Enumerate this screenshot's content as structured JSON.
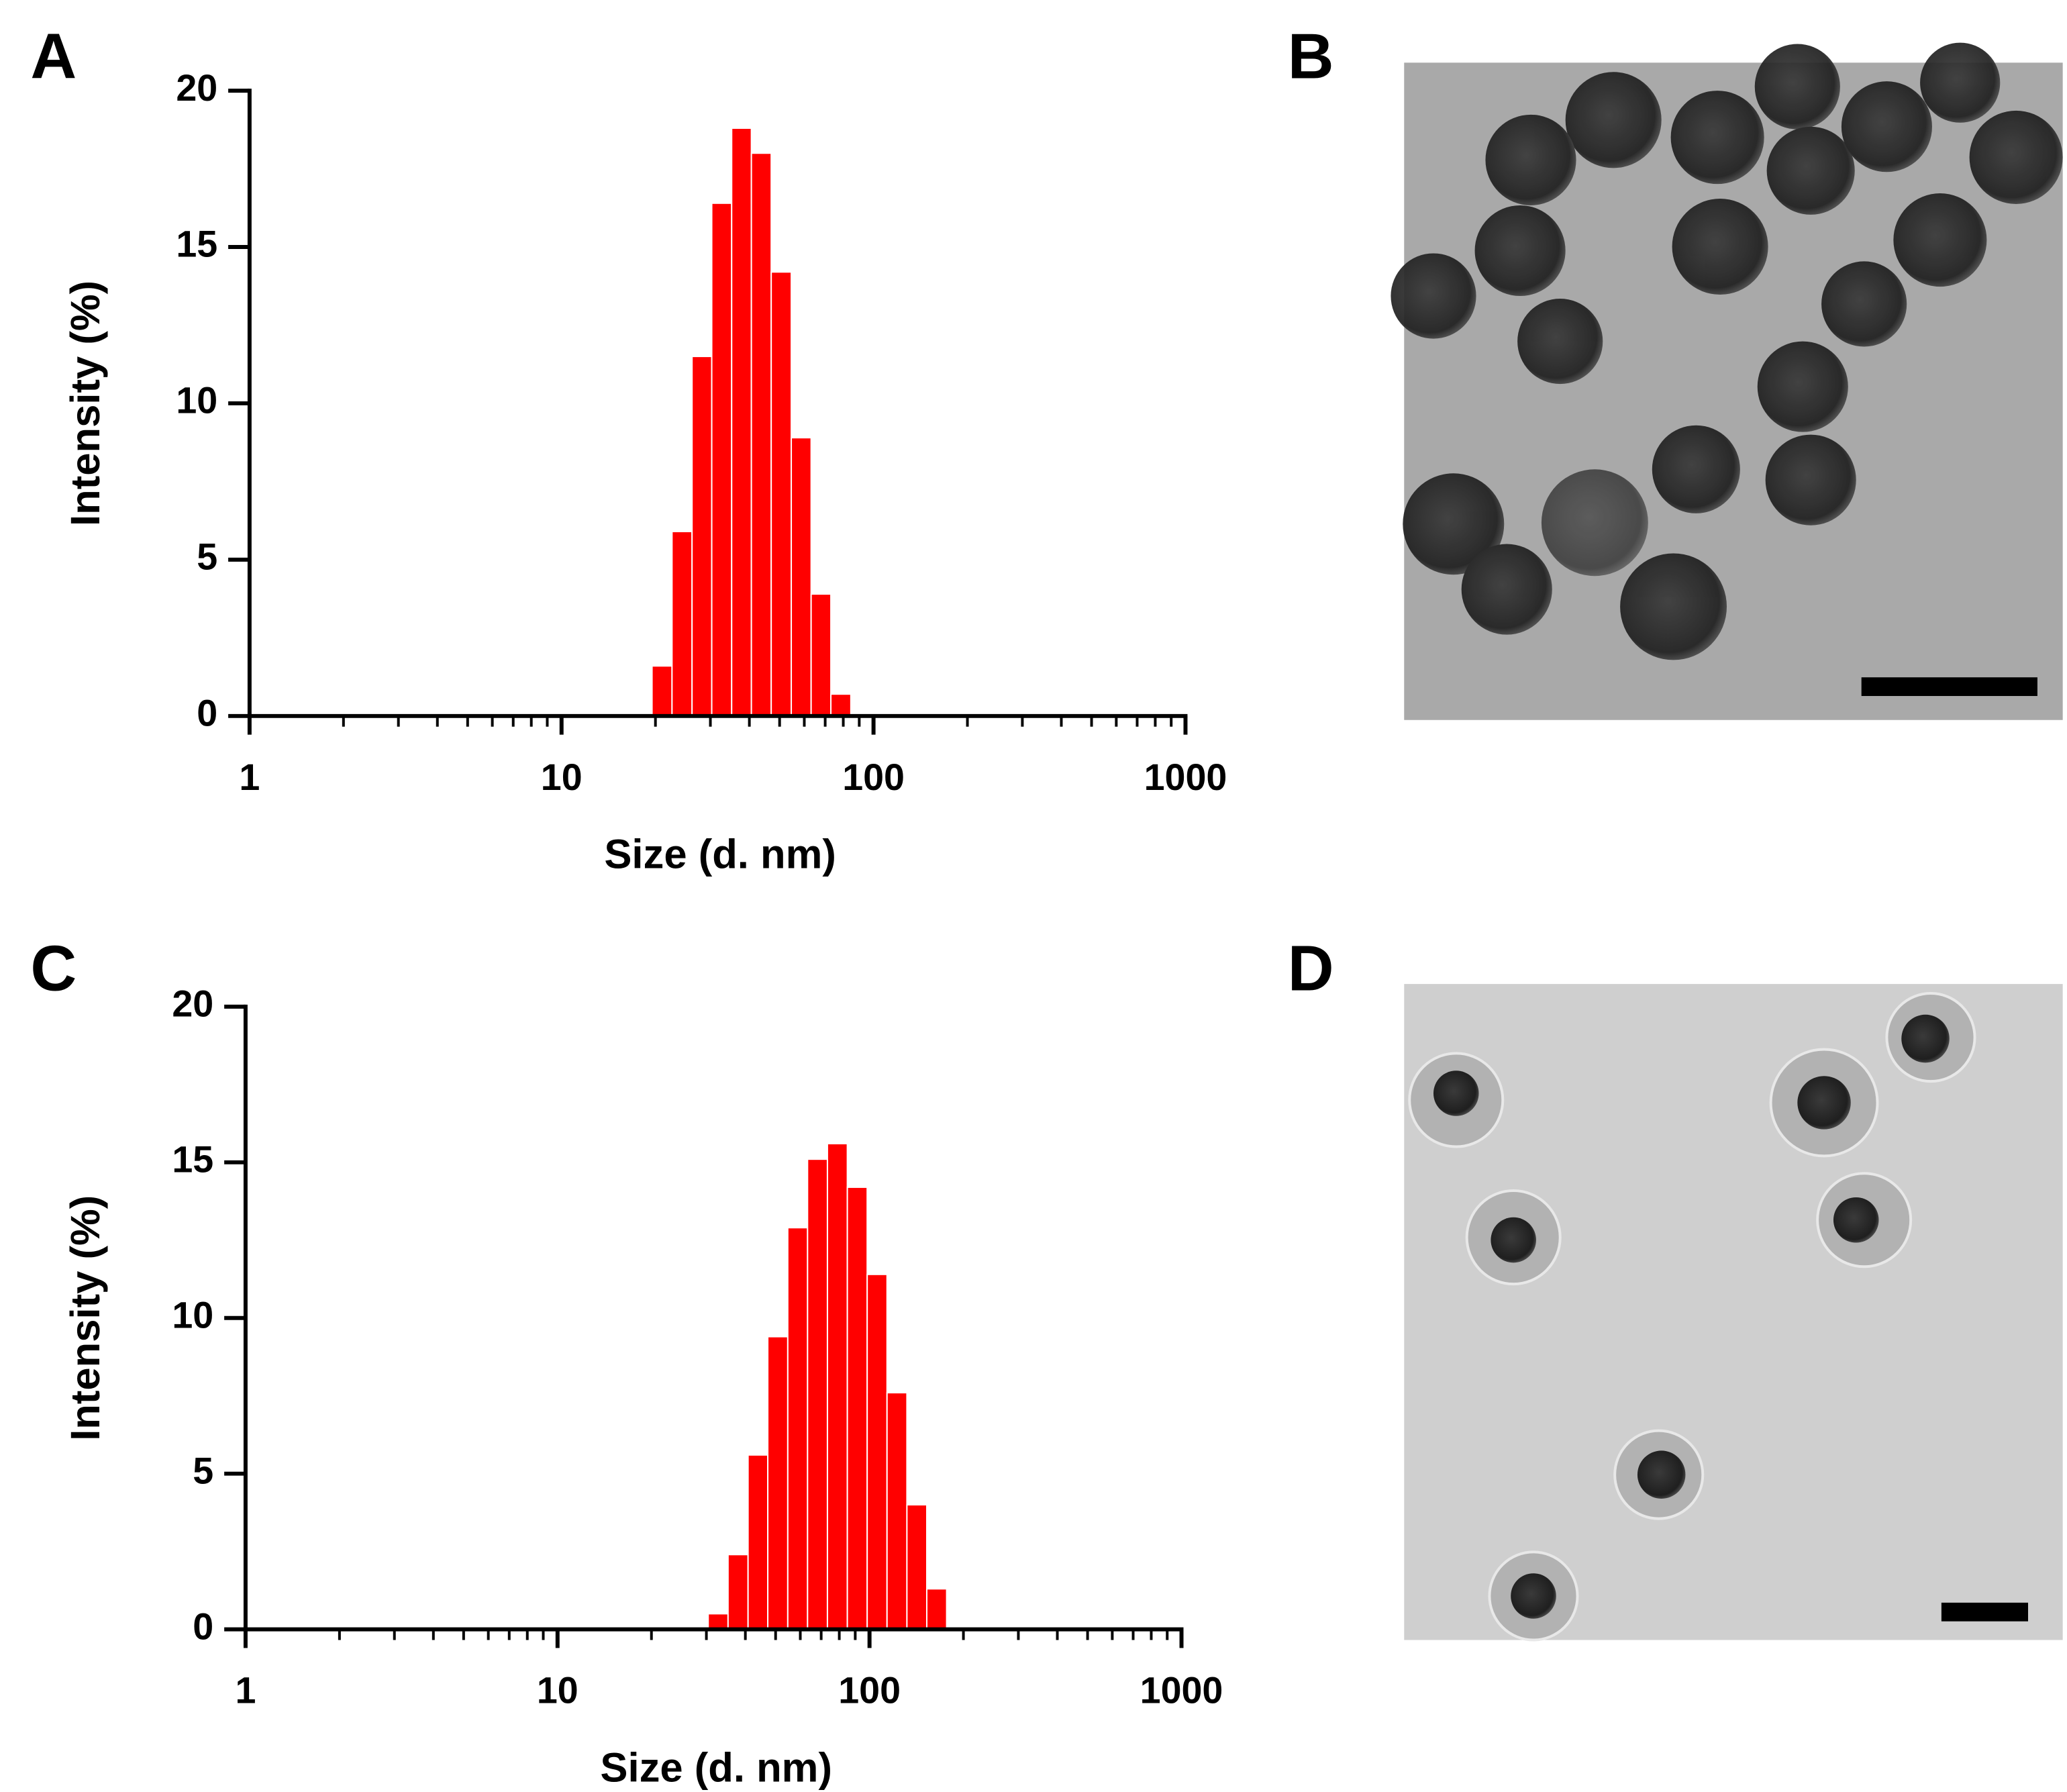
{
  "panel_labels": [
    "A",
    "B",
    "C",
    "D"
  ],
  "chart_data": [
    {
      "type": "histogram",
      "xlabel": "Size (d. nm)",
      "ylabel": "Intensity (%)",
      "color": "#ff0000",
      "xscale": "log",
      "bins": [
        19.5,
        22.6,
        26.2,
        30.3,
        35.1,
        40.6,
        47.0,
        54.5,
        63.1,
        73.0,
        84.6
      ],
      "values": [
        1.6,
        5.9,
        11.5,
        16.4,
        18.8,
        18.0,
        14.2,
        8.9,
        3.9,
        0.7
      ],
      "xlim": [
        1,
        1000
      ],
      "xticks": [
        1,
        10,
        100,
        1000
      ],
      "xminorticks": [
        2,
        3,
        4,
        5,
        6,
        7,
        8,
        9,
        20,
        30,
        40,
        50,
        60,
        70,
        80,
        90,
        200,
        300,
        400,
        500,
        600,
        700,
        800,
        900
      ],
      "ylim": [
        0,
        20
      ],
      "yticks": [
        0,
        5,
        10,
        15,
        20
      ]
    },
    {
      "type": "histogram",
      "xlabel": "Size (d. nm)",
      "ylabel": "Intensity (%)",
      "color": "#ff0000",
      "xscale": "log",
      "bins": [
        30.4,
        35.2,
        40.8,
        47.2,
        54.7,
        63.3,
        73.3,
        84.9,
        98.3,
        113.8,
        131.8,
        152.6,
        176.7
      ],
      "values": [
        0.5,
        2.4,
        5.6,
        9.4,
        12.9,
        15.1,
        15.6,
        14.2,
        11.4,
        7.6,
        4.0,
        1.3
      ],
      "xlim": [
        1,
        1000
      ],
      "xticks": [
        1,
        10,
        100,
        1000
      ],
      "xminorticks": [
        2,
        3,
        4,
        5,
        6,
        7,
        8,
        9,
        20,
        30,
        40,
        50,
        60,
        70,
        80,
        90,
        200,
        300,
        400,
        500,
        600,
        700,
        800,
        900
      ],
      "ylim": [
        0,
        20
      ],
      "yticks": [
        0,
        5,
        10,
        15,
        20
      ]
    }
  ]
}
